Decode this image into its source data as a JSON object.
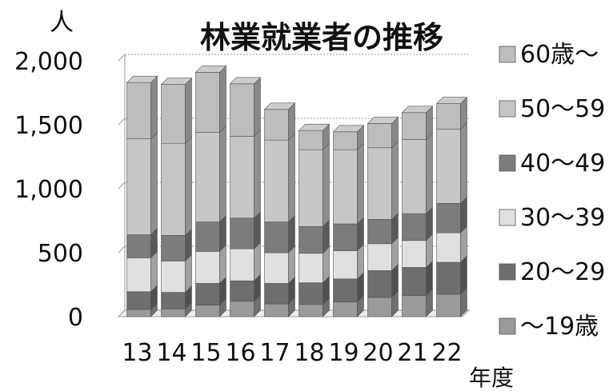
{
  "chart_data": {
    "type": "bar",
    "stacked": true,
    "three_d": true,
    "title": "林業就業者の推移",
    "ylabel": "人",
    "xlabel": "年度",
    "categories": [
      "13",
      "14",
      "15",
      "16",
      "17",
      "18",
      "19",
      "20",
      "21",
      "22"
    ],
    "ylim": [
      0,
      2000
    ],
    "yticks": [
      "0",
      "500",
      "1,000",
      "1,500",
      "2,000"
    ],
    "ytick_values": [
      0,
      500,
      1000,
      1500,
      2000
    ],
    "grid": true,
    "legend_position": "right",
    "series": [
      {
        "name": "～19歳",
        "color": "#9a9a9a",
        "values": [
          55,
          60,
          90,
          120,
          100,
          95,
          115,
          150,
          165,
          175
        ]
      },
      {
        "name": "20～29",
        "color": "#6e6e6e",
        "values": [
          140,
          130,
          170,
          160,
          160,
          170,
          180,
          210,
          220,
          250
        ]
      },
      {
        "name": "30～39",
        "color": "#e0e0e0",
        "values": [
          265,
          245,
          250,
          250,
          240,
          230,
          220,
          210,
          210,
          230
        ]
      },
      {
        "name": "40～49",
        "color": "#7c7c7c",
        "values": [
          180,
          200,
          230,
          240,
          240,
          210,
          210,
          190,
          210,
          230
        ]
      },
      {
        "name": "50～59",
        "color": "#c6c6c6",
        "values": [
          750,
          720,
          700,
          640,
          640,
          600,
          580,
          560,
          580,
          580
        ]
      },
      {
        "name": "60歳～",
        "color": "#bdbdbd",
        "values": [
          440,
          460,
          470,
          410,
          240,
          150,
          140,
          190,
          210,
          200
        ]
      }
    ]
  }
}
